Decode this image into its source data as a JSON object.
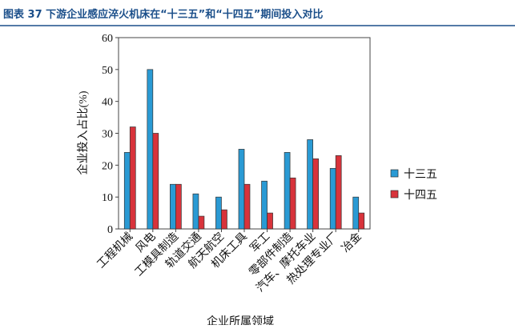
{
  "chart_data": {
    "type": "bar",
    "title": "图表 37  下游企业感应淬火机床在“十三五”和“十四五”期间投入对比",
    "y_label": "企业投入占比(%)",
    "x_label": "企业所属领域",
    "categories": [
      "工程机械",
      "风电",
      "工模具制造",
      "轨道交通",
      "航天航空",
      "机床工具",
      "军工",
      "零部件制造",
      "汽车、摩托车业",
      "热处理专业厂",
      "冶金"
    ],
    "series": [
      {
        "name": "十三五",
        "color": "#2a9ad4",
        "values": [
          24,
          50,
          14,
          11,
          10,
          25,
          15,
          24,
          28,
          19,
          10
        ]
      },
      {
        "name": "十四五",
        "color": "#d8333b",
        "values": [
          32,
          30,
          14,
          4,
          6,
          14,
          5,
          16,
          22,
          23,
          5
        ]
      }
    ],
    "ylim": [
      0,
      60
    ],
    "yticks": [
      0,
      10,
      20,
      30,
      40,
      50,
      60
    ],
    "legend": "right"
  }
}
